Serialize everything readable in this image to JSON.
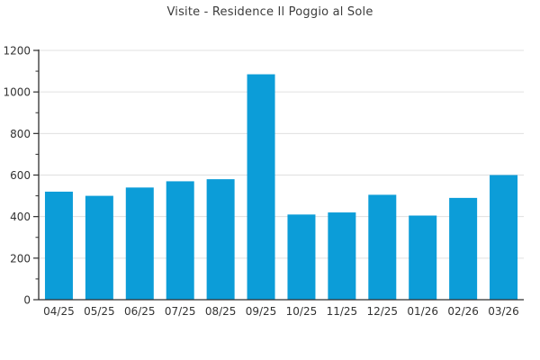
{
  "chart_data": {
    "type": "bar",
    "title": "Visite - Residence Il Poggio al Sole",
    "categories": [
      "04/25",
      "05/25",
      "06/25",
      "07/25",
      "08/25",
      "09/25",
      "10/25",
      "11/25",
      "12/25",
      "01/26",
      "02/26",
      "03/26"
    ],
    "series": [
      {
        "name": "Visite",
        "values": [
          520,
          500,
          540,
          570,
          580,
          1085,
          410,
          420,
          505,
          405,
          490,
          600
        ]
      }
    ],
    "xlabel": "",
    "ylabel": "",
    "ylim": [
      0,
      1200
    ],
    "yticks": [
      0,
      200,
      400,
      600,
      800,
      1000,
      1200
    ],
    "ytick_minor_step": 100,
    "grid": "horizontal",
    "legend": "none",
    "colors": {
      "bar": "#0c9dd8",
      "gridline": "#e0e0e0",
      "axis": "#2e2e2e",
      "tick_label": "#333333",
      "title": "#3c3c3c",
      "background": "#ffffff"
    }
  }
}
